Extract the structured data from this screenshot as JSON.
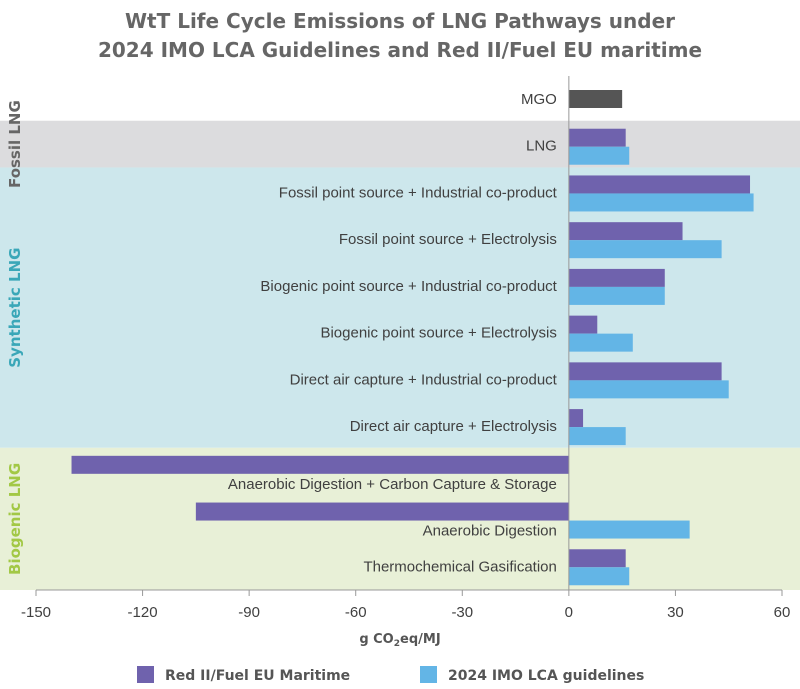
{
  "chart_data": {
    "type": "bar",
    "orientation": "horizontal",
    "title_lines": [
      "WtT Life Cycle Emissions of LNG Pathways under",
      "2024 IMO LCA Guidelines and Red II/Fuel EU maritime"
    ],
    "xlabel_main": "g CO",
    "xlabel_sub": "2",
    "xlabel_tail": "eq/MJ",
    "xlim": [
      -150,
      60
    ],
    "xticks": [
      -150,
      -120,
      -90,
      -60,
      -30,
      0,
      30,
      60
    ],
    "categories": [
      "MGO",
      "LNG",
      "Fossil point source + Industrial co-product",
      "Fossil point source + Electrolysis",
      "Biogenic point source + Industrial co-product",
      "Biogenic point source + Electrolysis",
      "Direct air capture + Industrial co-product",
      "Direct air capture + Electrolysis",
      "Anaerobic Digestion + Carbon Capture & Storage",
      "Anaerobic Digestion",
      "Thermochemical Gasification"
    ],
    "mgo_value": 15,
    "series": [
      {
        "name": "Red II/Fuel EU Maritime",
        "color": "#6f62ad",
        "values": [
          null,
          16,
          51,
          32,
          27,
          8,
          43,
          4,
          -140,
          -105,
          16
        ]
      },
      {
        "name": "2024 IMO LCA guidelines",
        "color": "#63b5e6",
        "values": [
          null,
          17,
          52,
          43,
          27,
          18,
          45,
          16,
          null,
          34,
          17
        ]
      }
    ],
    "groups": [
      {
        "label": "Fossil LNG",
        "color": "#666666",
        "bg": "#dcdcde",
        "start": 1,
        "end": 1
      },
      {
        "label": "Synthetic LNG",
        "color": "#3aa7b8",
        "bg": "#cde7ec",
        "start": 2,
        "end": 7
      },
      {
        "label": "Biogenic LNG",
        "color": "#a2c845",
        "bg": "#e8f0d7",
        "start": 8,
        "end": 10
      }
    ],
    "mgo_color": "#555555"
  }
}
